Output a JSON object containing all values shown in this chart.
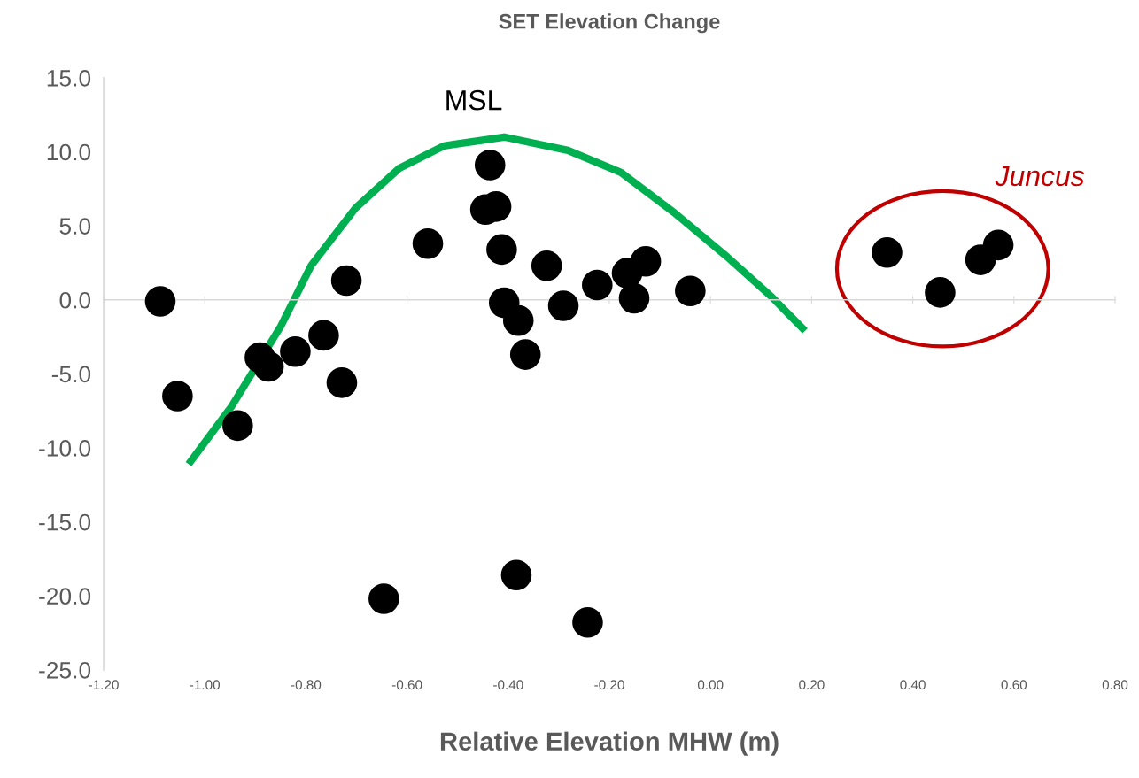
{
  "chart_data": {
    "type": "scatter",
    "title": "SET Elevation Change",
    "xlabel": "Relative Elevation MHW (m)",
    "xlim": [
      -1.2,
      0.8
    ],
    "ylim": [
      -25,
      15
    ],
    "xticks": [
      {
        "value": -1.2,
        "label": "-1.20"
      },
      {
        "value": -1.0,
        "label": "-1.00"
      },
      {
        "value": -0.8,
        "label": "-0.80"
      },
      {
        "value": -0.6,
        "label": "-0.60"
      },
      {
        "value": -0.4,
        "label": "-0.40"
      },
      {
        "value": -0.2,
        "label": "-0.20"
      },
      {
        "value": 0,
        "label": "0.00"
      },
      {
        "value": 0.2,
        "label": "0.20"
      },
      {
        "value": 0.4,
        "label": "0.40"
      },
      {
        "value": 0.6,
        "label": "0.60"
      },
      {
        "value": 0.8,
        "label": "0.80"
      }
    ],
    "yticks": [
      {
        "value": 15,
        "label": "15.0"
      },
      {
        "value": 10,
        "label": "10.0"
      },
      {
        "value": 5,
        "label": "5.0"
      },
      {
        "value": 0,
        "label": "0.0"
      },
      {
        "value": -5,
        "label": "-5.0"
      },
      {
        "value": -10,
        "label": "-10.0"
      },
      {
        "value": -15,
        "label": "-15.0"
      },
      {
        "value": -20,
        "label": "-20.0"
      },
      {
        "value": -25,
        "label": "-25.0"
      }
    ],
    "legend": false,
    "marker": "circle",
    "series": [
      {
        "color": "#000000",
        "x": [
          -1.088,
          -1.054,
          -0.935,
          -0.891,
          -0.874,
          -0.821,
          -0.765,
          -0.729,
          -0.72,
          -0.646,
          -0.559,
          -0.445,
          -0.436,
          -0.424,
          -0.413,
          -0.408,
          -0.38,
          -0.384,
          -0.366,
          -0.324,
          -0.291,
          -0.243,
          -0.224,
          -0.165,
          -0.151,
          -0.128,
          -0.04
        ],
        "values": [
          -0.1,
          -6.5,
          -8.5,
          -3.9,
          -4.5,
          -3.5,
          -2.4,
          -5.6,
          1.3,
          -20.2,
          3.8,
          6.1,
          9.1,
          6.3,
          3.4,
          -0.2,
          -1.4,
          -18.6,
          -3.7,
          2.3,
          -0.4,
          -21.8,
          1.0,
          1.8,
          0.1,
          2.6,
          0.6
        ]
      },
      {
        "color": "#000000",
        "x": [
          0.349,
          0.454,
          0.534,
          0.569
        ],
        "values": [
          3.2,
          0.5,
          2.7,
          3.7
        ]
      },
      {
        "type": "line",
        "color": "#00b050",
        "marker": "none",
        "x": [
          -1.032,
          -0.947,
          -0.85,
          -0.79,
          -0.702,
          -0.615,
          -0.527,
          -0.408,
          -0.282,
          -0.177,
          -0.072,
          0.033,
          0.121,
          0.187
        ],
        "values": [
          -11.1,
          -7.2,
          -1.8,
          2.3,
          6.2,
          8.9,
          10.4,
          11.0,
          10.1,
          8.6,
          5.9,
          2.9,
          0.2,
          -2.1
        ]
      }
    ],
    "annotations": [
      "MSL",
      "Juncus"
    ]
  }
}
